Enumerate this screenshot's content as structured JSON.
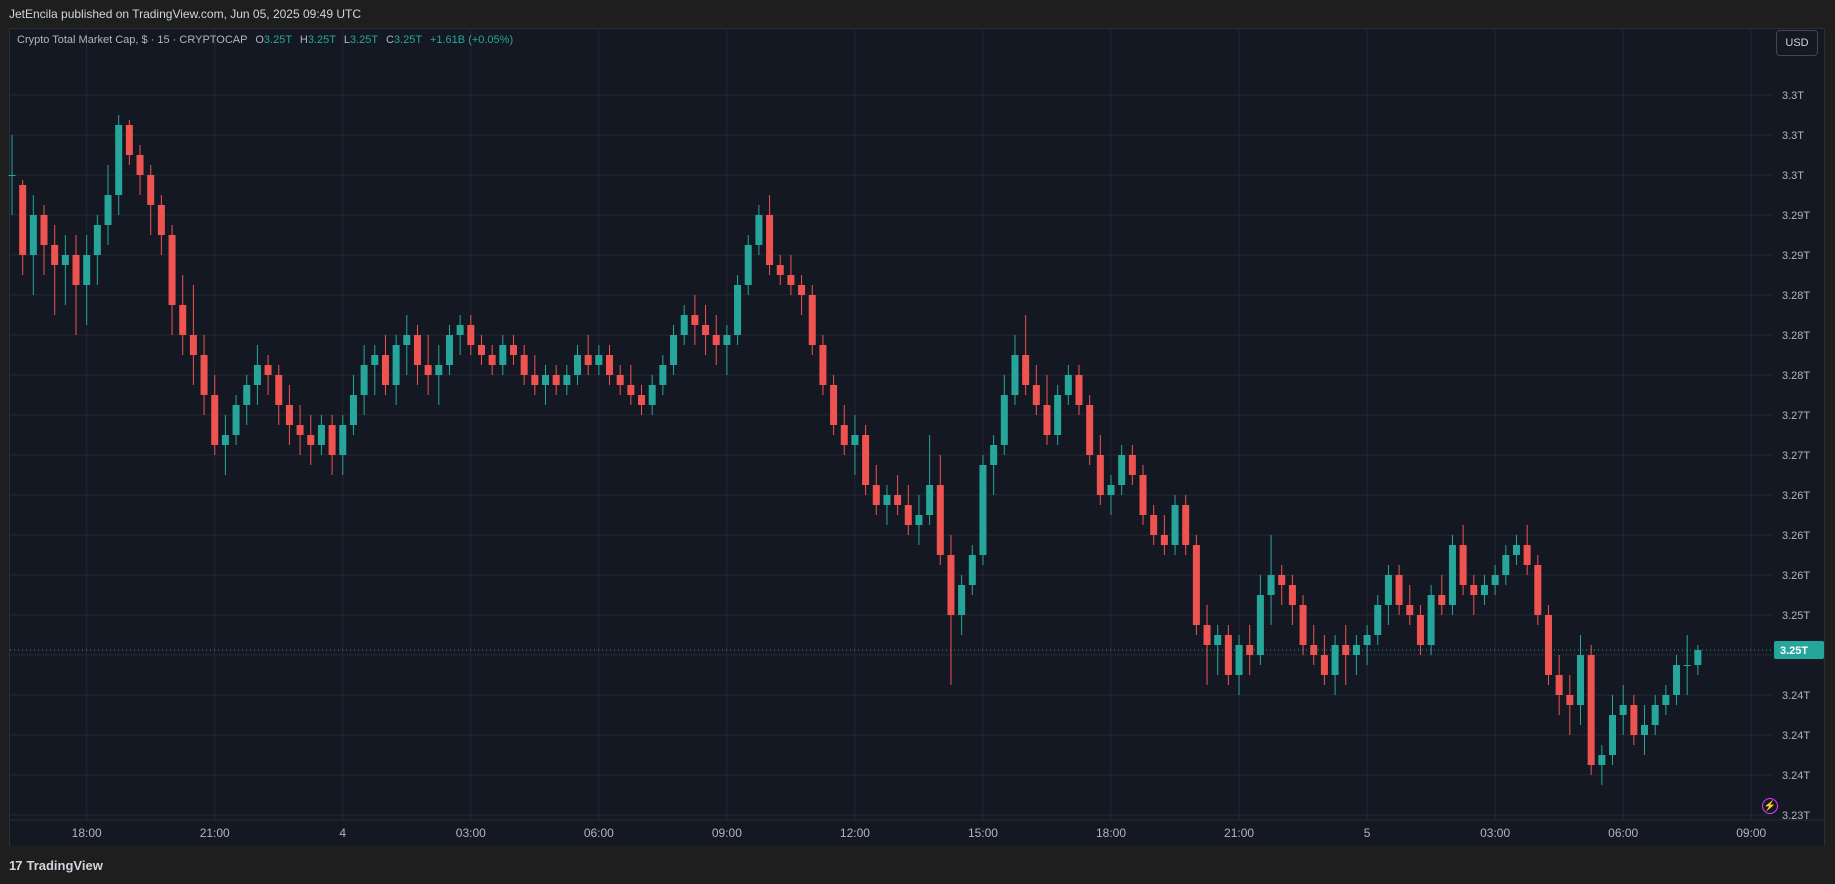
{
  "header": {
    "published_by": "JetEncila published on TradingView.com, Jun 05, 2025 09:49 UTC"
  },
  "legend": {
    "symbol": "Crypto Total Market Cap, $ · 15 · CRYPTOCAP",
    "o_label": "O",
    "o_value": "3.25T",
    "h_label": "H",
    "h_value": "3.25T",
    "l_label": "L",
    "l_value": "3.25T",
    "c_label": "C",
    "c_value": "3.25T",
    "change": "+1.61B (+0.05%)"
  },
  "currency_button": "USD",
  "footer": {
    "brand": "TradingView",
    "logo_glyph": "17"
  },
  "colors": {
    "up": "#26a69a",
    "down": "#ef5350",
    "background": "#141823",
    "grid": "#232733",
    "axis_text": "#b2b5be"
  },
  "icons": {
    "brand_logo": "tradingview-logo-icon",
    "alert": "lightning-bolt-icon"
  },
  "chart_data": {
    "type": "candlestick",
    "title": "Crypto Total Market Cap, $ · 15 · CRYPTOCAP",
    "interval": "15",
    "currency": "USD",
    "grid": true,
    "last_price_label": "3.25T",
    "last_price": 3.2485,
    "ylim": [
      3.2315,
      3.3105
    ],
    "y_ticks": [
      {
        "value": 3.304,
        "label": "3.3T"
      },
      {
        "value": 3.3,
        "label": "3.3T"
      },
      {
        "value": 3.296,
        "label": "3.3T"
      },
      {
        "value": 3.292,
        "label": "3.29T"
      },
      {
        "value": 3.288,
        "label": "3.29T"
      },
      {
        "value": 3.284,
        "label": "3.28T"
      },
      {
        "value": 3.28,
        "label": "3.28T"
      },
      {
        "value": 3.276,
        "label": "3.28T"
      },
      {
        "value": 3.272,
        "label": "3.27T"
      },
      {
        "value": 3.268,
        "label": "3.27T"
      },
      {
        "value": 3.264,
        "label": "3.26T"
      },
      {
        "value": 3.26,
        "label": "3.26T"
      },
      {
        "value": 3.256,
        "label": "3.26T"
      },
      {
        "value": 3.252,
        "label": "3.25T"
      },
      {
        "value": 3.248,
        "label": "3.25T"
      },
      {
        "value": 3.244,
        "label": "3.24T"
      },
      {
        "value": 3.24,
        "label": "3.24T"
      },
      {
        "value": 3.236,
        "label": "3.24T"
      },
      {
        "value": 3.232,
        "label": "3.23T"
      }
    ],
    "x_ticks": [
      {
        "index": 7,
        "label": "18:00"
      },
      {
        "index": 19,
        "label": "21:00"
      },
      {
        "index": 31,
        "label": "4"
      },
      {
        "index": 43,
        "label": "03:00"
      },
      {
        "index": 55,
        "label": "06:00"
      },
      {
        "index": 67,
        "label": "09:00"
      },
      {
        "index": 79,
        "label": "12:00"
      },
      {
        "index": 91,
        "label": "15:00"
      },
      {
        "index": 103,
        "label": "18:00"
      },
      {
        "index": 115,
        "label": "21:00"
      },
      {
        "index": 127,
        "label": "5"
      },
      {
        "index": 139,
        "label": "03:00"
      },
      {
        "index": 151,
        "label": "06:00"
      },
      {
        "index": 163,
        "label": "09:00"
      }
    ],
    "candles": [
      [
        3.296,
        3.3,
        3.292,
        3.296
      ],
      [
        3.295,
        3.2955,
        3.286,
        3.288
      ],
      [
        3.288,
        3.294,
        3.284,
        3.292
      ],
      [
        3.292,
        3.293,
        3.286,
        3.289
      ],
      [
        3.289,
        3.291,
        3.282,
        3.287
      ],
      [
        3.287,
        3.29,
        3.283,
        3.288
      ],
      [
        3.288,
        3.29,
        3.28,
        3.285
      ],
      [
        3.285,
        3.29,
        3.281,
        3.288
      ],
      [
        3.288,
        3.292,
        3.285,
        3.291
      ],
      [
        3.291,
        3.297,
        3.289,
        3.294
      ],
      [
        3.294,
        3.302,
        3.292,
        3.301
      ],
      [
        3.301,
        3.3015,
        3.297,
        3.298
      ],
      [
        3.298,
        3.299,
        3.294,
        3.296
      ],
      [
        3.296,
        3.297,
        3.29,
        3.293
      ],
      [
        3.293,
        3.294,
        3.288,
        3.29
      ],
      [
        3.29,
        3.291,
        3.28,
        3.283
      ],
      [
        3.283,
        3.286,
        3.278,
        3.28
      ],
      [
        3.28,
        3.285,
        3.275,
        3.278
      ],
      [
        3.278,
        3.28,
        3.272,
        3.274
      ],
      [
        3.274,
        3.276,
        3.268,
        3.269
      ],
      [
        3.269,
        3.272,
        3.266,
        3.27
      ],
      [
        3.27,
        3.274,
        3.269,
        3.273
      ],
      [
        3.273,
        3.276,
        3.271,
        3.275
      ],
      [
        3.275,
        3.279,
        3.273,
        3.277
      ],
      [
        3.277,
        3.278,
        3.274,
        3.276
      ],
      [
        3.276,
        3.277,
        3.271,
        3.273
      ],
      [
        3.273,
        3.275,
        3.269,
        3.271
      ],
      [
        3.271,
        3.273,
        3.268,
        3.27
      ],
      [
        3.27,
        3.272,
        3.267,
        3.269
      ],
      [
        3.269,
        3.272,
        3.268,
        3.271
      ],
      [
        3.271,
        3.272,
        3.266,
        3.268
      ],
      [
        3.268,
        3.272,
        3.266,
        3.271
      ],
      [
        3.271,
        3.276,
        3.27,
        3.274
      ],
      [
        3.274,
        3.279,
        3.272,
        3.277
      ],
      [
        3.277,
        3.279,
        3.274,
        3.278
      ],
      [
        3.278,
        3.28,
        3.274,
        3.275
      ],
      [
        3.275,
        3.28,
        3.273,
        3.279
      ],
      [
        3.279,
        3.282,
        3.276,
        3.28
      ],
      [
        3.28,
        3.281,
        3.275,
        3.277
      ],
      [
        3.277,
        3.28,
        3.274,
        3.276
      ],
      [
        3.276,
        3.279,
        3.273,
        3.277
      ],
      [
        3.277,
        3.281,
        3.276,
        3.28
      ],
      [
        3.28,
        3.282,
        3.278,
        3.281
      ],
      [
        3.281,
        3.282,
        3.278,
        3.279
      ],
      [
        3.279,
        3.28,
        3.277,
        3.278
      ],
      [
        3.278,
        3.279,
        3.276,
        3.277
      ],
      [
        3.277,
        3.28,
        3.276,
        3.279
      ],
      [
        3.279,
        3.28,
        3.277,
        3.278
      ],
      [
        3.278,
        3.279,
        3.275,
        3.276
      ],
      [
        3.276,
        3.278,
        3.274,
        3.275
      ],
      [
        3.275,
        3.277,
        3.273,
        3.276
      ],
      [
        3.276,
        3.277,
        3.274,
        3.275
      ],
      [
        3.275,
        3.277,
        3.274,
        3.276
      ],
      [
        3.276,
        3.279,
        3.275,
        3.278
      ],
      [
        3.278,
        3.28,
        3.276,
        3.277
      ],
      [
        3.277,
        3.279,
        3.276,
        3.278
      ],
      [
        3.278,
        3.279,
        3.275,
        3.276
      ],
      [
        3.276,
        3.277,
        3.274,
        3.275
      ],
      [
        3.275,
        3.277,
        3.273,
        3.274
      ],
      [
        3.274,
        3.275,
        3.272,
        3.273
      ],
      [
        3.273,
        3.276,
        3.272,
        3.275
      ],
      [
        3.275,
        3.278,
        3.274,
        3.277
      ],
      [
        3.277,
        3.281,
        3.276,
        3.28
      ],
      [
        3.28,
        3.283,
        3.279,
        3.282
      ],
      [
        3.282,
        3.284,
        3.279,
        3.281
      ],
      [
        3.281,
        3.283,
        3.278,
        3.28
      ],
      [
        3.28,
        3.282,
        3.277,
        3.279
      ],
      [
        3.279,
        3.281,
        3.276,
        3.28
      ],
      [
        3.28,
        3.286,
        3.279,
        3.285
      ],
      [
        3.285,
        3.29,
        3.284,
        3.289
      ],
      [
        3.289,
        3.293,
        3.288,
        3.292
      ],
      [
        3.292,
        3.294,
        3.286,
        3.287
      ],
      [
        3.287,
        3.288,
        3.285,
        3.286
      ],
      [
        3.286,
        3.288,
        3.284,
        3.285
      ],
      [
        3.285,
        3.286,
        3.282,
        3.284
      ],
      [
        3.284,
        3.285,
        3.278,
        3.279
      ],
      [
        3.279,
        3.28,
        3.274,
        3.275
      ],
      [
        3.275,
        3.276,
        3.27,
        3.271
      ],
      [
        3.271,
        3.273,
        3.268,
        3.269
      ],
      [
        3.269,
        3.272,
        3.266,
        3.27
      ],
      [
        3.27,
        3.271,
        3.264,
        3.265
      ],
      [
        3.265,
        3.267,
        3.262,
        3.263
      ],
      [
        3.263,
        3.265,
        3.261,
        3.264
      ],
      [
        3.264,
        3.266,
        3.262,
        3.263
      ],
      [
        3.263,
        3.265,
        3.26,
        3.261
      ],
      [
        3.261,
        3.264,
        3.259,
        3.262
      ],
      [
        3.262,
        3.27,
        3.261,
        3.265
      ],
      [
        3.265,
        3.268,
        3.257,
        3.258
      ],
      [
        3.258,
        3.26,
        3.245,
        3.252
      ],
      [
        3.252,
        3.256,
        3.25,
        3.255
      ],
      [
        3.255,
        3.259,
        3.254,
        3.258
      ],
      [
        3.258,
        3.268,
        3.257,
        3.267
      ],
      [
        3.267,
        3.27,
        3.264,
        3.269
      ],
      [
        3.269,
        3.276,
        3.268,
        3.274
      ],
      [
        3.274,
        3.28,
        3.273,
        3.278
      ],
      [
        3.278,
        3.282,
        3.274,
        3.275
      ],
      [
        3.275,
        3.277,
        3.272,
        3.273
      ],
      [
        3.273,
        3.276,
        3.269,
        3.27
      ],
      [
        3.27,
        3.275,
        3.269,
        3.274
      ],
      [
        3.274,
        3.277,
        3.273,
        3.276
      ],
      [
        3.276,
        3.277,
        3.272,
        3.273
      ],
      [
        3.273,
        3.274,
        3.267,
        3.268
      ],
      [
        3.268,
        3.27,
        3.263,
        3.264
      ],
      [
        3.264,
        3.266,
        3.262,
        3.265
      ],
      [
        3.265,
        3.269,
        3.264,
        3.268
      ],
      [
        3.268,
        3.269,
        3.265,
        3.266
      ],
      [
        3.266,
        3.267,
        3.261,
        3.262
      ],
      [
        3.262,
        3.263,
        3.259,
        3.26
      ],
      [
        3.26,
        3.262,
        3.258,
        3.259
      ],
      [
        3.259,
        3.264,
        3.258,
        3.263
      ],
      [
        3.263,
        3.264,
        3.258,
        3.259
      ],
      [
        3.259,
        3.26,
        3.25,
        3.251
      ],
      [
        3.251,
        3.253,
        3.245,
        3.249
      ],
      [
        3.249,
        3.251,
        3.246,
        3.25
      ],
      [
        3.25,
        3.251,
        3.245,
        3.246
      ],
      [
        3.246,
        3.25,
        3.244,
        3.249
      ],
      [
        3.249,
        3.251,
        3.246,
        3.248
      ],
      [
        3.248,
        3.256,
        3.247,
        3.254
      ],
      [
        3.254,
        3.26,
        3.251,
        3.256
      ],
      [
        3.256,
        3.257,
        3.253,
        3.255
      ],
      [
        3.255,
        3.256,
        3.251,
        3.253
      ],
      [
        3.253,
        3.254,
        3.248,
        3.249
      ],
      [
        3.249,
        3.251,
        3.247,
        3.248
      ],
      [
        3.248,
        3.25,
        3.245,
        3.246
      ],
      [
        3.246,
        3.25,
        3.244,
        3.249
      ],
      [
        3.249,
        3.251,
        3.245,
        3.248
      ],
      [
        3.248,
        3.25,
        3.246,
        3.249
      ],
      [
        3.249,
        3.251,
        3.247,
        3.25
      ],
      [
        3.25,
        3.254,
        3.249,
        3.253
      ],
      [
        3.253,
        3.257,
        3.251,
        3.256
      ],
      [
        3.256,
        3.257,
        3.252,
        3.253
      ],
      [
        3.253,
        3.255,
        3.251,
        3.252
      ],
      [
        3.252,
        3.253,
        3.248,
        3.249
      ],
      [
        3.249,
        3.255,
        3.248,
        3.254
      ],
      [
        3.254,
        3.256,
        3.252,
        3.253
      ],
      [
        3.253,
        3.26,
        3.252,
        3.259
      ],
      [
        3.259,
        3.261,
        3.254,
        3.255
      ],
      [
        3.255,
        3.256,
        3.252,
        3.254
      ],
      [
        3.254,
        3.256,
        3.253,
        3.255
      ],
      [
        3.255,
        3.257,
        3.254,
        3.256
      ],
      [
        3.256,
        3.259,
        3.255,
        3.258
      ],
      [
        3.258,
        3.26,
        3.257,
        3.259
      ],
      [
        3.259,
        3.261,
        3.256,
        3.257
      ],
      [
        3.257,
        3.258,
        3.251,
        3.252
      ],
      [
        3.252,
        3.253,
        3.245,
        3.246
      ],
      [
        3.246,
        3.248,
        3.242,
        3.244
      ],
      [
        3.244,
        3.246,
        3.24,
        3.243
      ],
      [
        3.243,
        3.25,
        3.241,
        3.248
      ],
      [
        3.248,
        3.249,
        3.236,
        3.237
      ],
      [
        3.237,
        3.239,
        3.235,
        3.238
      ],
      [
        3.238,
        3.244,
        3.237,
        3.242
      ],
      [
        3.242,
        3.245,
        3.24,
        3.243
      ],
      [
        3.243,
        3.244,
        3.239,
        3.24
      ],
      [
        3.24,
        3.243,
        3.238,
        3.241
      ],
      [
        3.241,
        3.244,
        3.24,
        3.243
      ],
      [
        3.243,
        3.245,
        3.242,
        3.244
      ],
      [
        3.244,
        3.248,
        3.243,
        3.247
      ],
      [
        3.247,
        3.25,
        3.244,
        3.247
      ],
      [
        3.247,
        3.249,
        3.246,
        3.2485
      ]
    ]
  }
}
